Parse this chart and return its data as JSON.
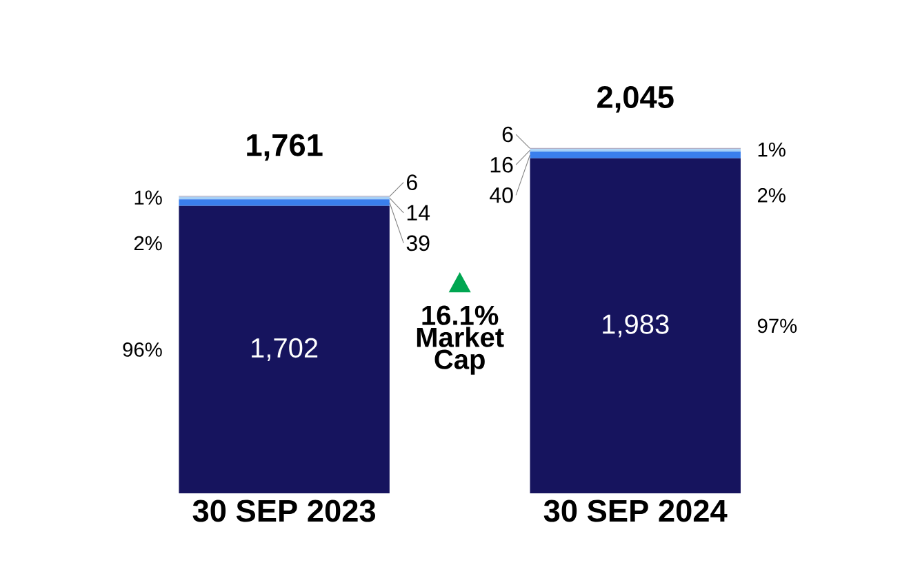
{
  "chart_data": {
    "type": "bar",
    "stacked": true,
    "tick_labels": "x",
    "categories": [
      "30 SEP 2023",
      "30 SEP 2024"
    ],
    "series": [
      {
        "color": "#16145e",
        "values": [
          1702,
          1983
        ],
        "value_labels": [
          "1,702",
          "1,983"
        ]
      },
      {
        "color": "#3a7fec",
        "values": [
          39,
          40
        ],
        "value_labels": [
          "39",
          "40"
        ]
      },
      {
        "color": "#a6d0f6",
        "values": [
          14,
          16
        ],
        "value_labels": [
          "14",
          "16"
        ]
      },
      {
        "color": "#b3b0c6",
        "values": [
          6,
          6
        ],
        "value_labels": [
          "6",
          "6"
        ]
      }
    ],
    "totals": [
      "1,761",
      "2,045"
    ],
    "annotations": [
      "96%",
      "2%",
      "1%",
      "97%",
      "2%",
      "1%",
      "16.1% Market Cap"
    ]
  }
}
